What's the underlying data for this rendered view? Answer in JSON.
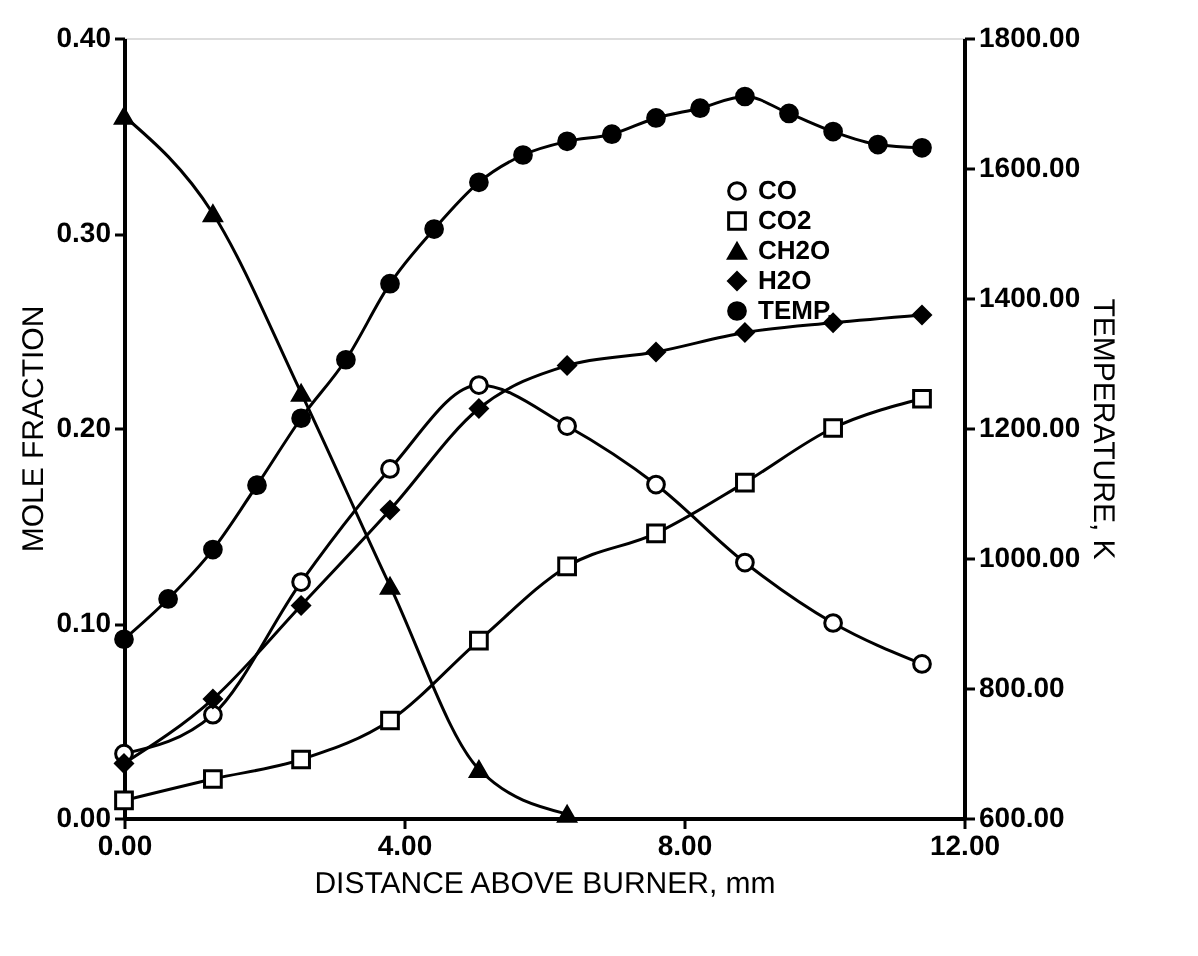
{
  "chart_data": {
    "type": "line",
    "xlabel": "DISTANCE ABOVE BURNER, mm",
    "ylabel": "MOLE FRACTION",
    "y2label": "TEMPERATURE, K",
    "xlim": [
      0,
      12
    ],
    "xticks": [
      {
        "value": 0,
        "label": "0.00"
      },
      {
        "value": 4,
        "label": "4.00"
      },
      {
        "value": 8,
        "label": "8.00"
      },
      {
        "value": 12,
        "label": "12.00"
      }
    ],
    "ylim": [
      0,
      0.4
    ],
    "yticks": [
      {
        "value": 0,
        "label": "0.00"
      },
      {
        "value": 0.1,
        "label": "0.10"
      },
      {
        "value": 0.2,
        "label": "0.20"
      },
      {
        "value": 0.3,
        "label": "0.30"
      },
      {
        "value": 0.4,
        "label": "0.40"
      }
    ],
    "y2lim": [
      600,
      1800
    ],
    "y2ticks": [
      {
        "value": 600,
        "label": "600.00"
      },
      {
        "value": 800,
        "label": "800.00"
      },
      {
        "value": 1000,
        "label": "1000.00"
      },
      {
        "value": 1200,
        "label": "1200.00"
      },
      {
        "value": 1400,
        "label": "1400.00"
      },
      {
        "value": 1600,
        "label": "1600.00"
      },
      {
        "value": 1800,
        "label": "1800.00"
      }
    ],
    "grid": false,
    "legend": "top right",
    "line_style": "solid",
    "series": [
      {
        "name": "CO",
        "color": "#000000",
        "marker": "circle",
        "x": [
          0,
          1.27,
          2.53,
          3.8,
          5.07,
          6.33,
          7.6,
          8.87,
          10.13,
          11.4
        ],
        "values": [
          0.033,
          0.053,
          0.121,
          0.179,
          0.222,
          0.201,
          0.171,
          0.131,
          0.1,
          0.079
        ]
      },
      {
        "name": "CO2",
        "color": "#000000",
        "marker": "square",
        "x": [
          0,
          1.27,
          2.53,
          3.8,
          5.07,
          6.33,
          7.6,
          8.87,
          10.13,
          11.4
        ],
        "values": [
          0.009,
          0.02,
          0.03,
          0.05,
          0.091,
          0.129,
          0.146,
          0.172,
          0.2,
          0.215
        ]
      },
      {
        "name": "CH2O",
        "color": "#000000",
        "marker": "triangle",
        "x": [
          0,
          1.27,
          2.53,
          3.8,
          5.07,
          6.33
        ],
        "values": [
          0.36,
          0.31,
          0.218,
          0.119,
          0.025,
          0.002
        ]
      },
      {
        "name": "H2O",
        "color": "#000000",
        "marker": "diamond",
        "x": [
          0,
          1.27,
          2.53,
          3.8,
          5.07,
          6.33,
          7.6,
          8.87,
          10.13,
          11.4
        ],
        "values": [
          0.028,
          0.061,
          0.109,
          0.158,
          0.21,
          0.232,
          0.239,
          0.249,
          0.254,
          0.258
        ]
      },
      {
        "name": "TEMP.",
        "color": "#000000",
        "marker": "circle",
        "axis": "y2",
        "x": [
          0,
          0.63,
          1.27,
          1.9,
          2.53,
          3.17,
          3.8,
          4.43,
          5.07,
          5.7,
          6.33,
          6.97,
          7.6,
          8.23,
          8.87,
          9.5,
          10.13,
          10.77,
          11.4
        ],
        "values": [
          875,
          937,
          1013,
          1112,
          1215,
          1305,
          1422,
          1506,
          1578,
          1620,
          1641,
          1652,
          1677,
          1692,
          1710,
          1684,
          1656,
          1636,
          1631
        ]
      }
    ]
  }
}
